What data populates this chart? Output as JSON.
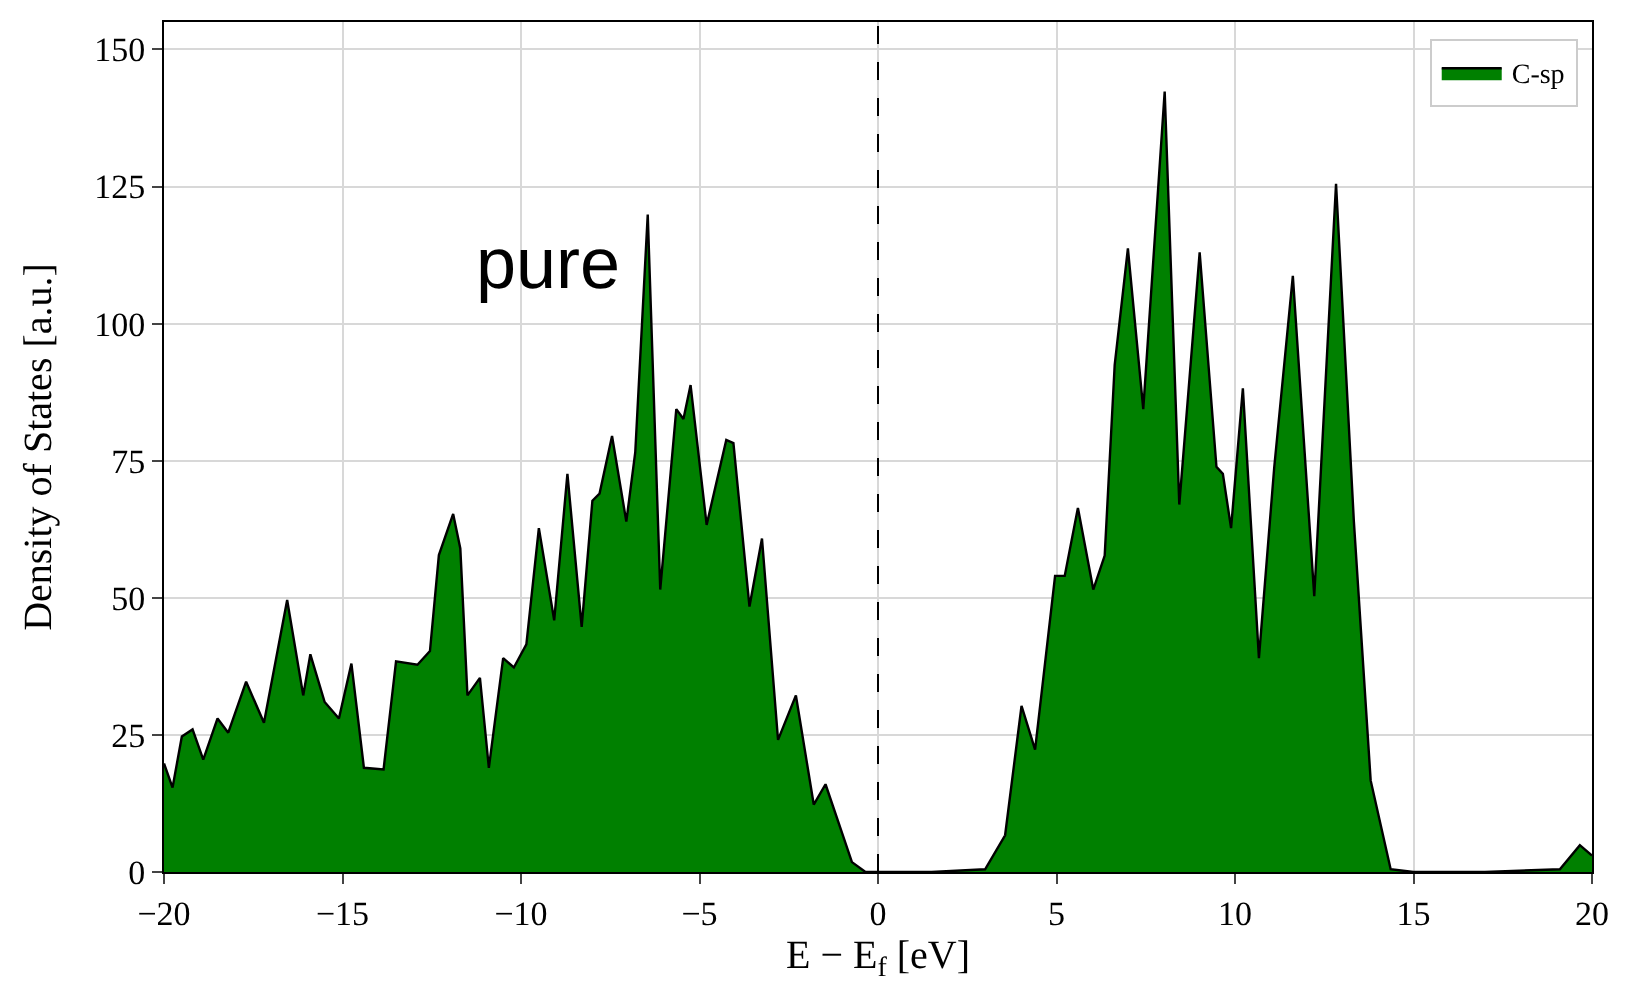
{
  "chart_data": {
    "type": "area",
    "xlabel": "E − E$_{f}$ [eV]",
    "ylabel": "Density of States [a.u.]",
    "annotations": [
      "pure"
    ],
    "xlim": [
      -20,
      20
    ],
    "ylim": [
      0,
      155
    ],
    "xticks": [
      {
        "value": -20,
        "label": "−20"
      },
      {
        "value": -15,
        "label": "−15"
      },
      {
        "value": -10,
        "label": "−10"
      },
      {
        "value": -5,
        "label": "−5"
      },
      0,
      5,
      10,
      15,
      20
    ],
    "yticks": [
      0,
      25,
      50,
      75,
      100,
      125,
      150
    ],
    "grid": true,
    "legend": "top right",
    "ref_lines": [
      {
        "axis": "x",
        "value": 0,
        "label": null,
        "color": "#000000",
        "line_style": "dashed"
      }
    ],
    "series": [
      {
        "name": "C-sp",
        "color": "#008000",
        "x": [
          -20,
          -19.76,
          -19.5,
          -19.2,
          -18.9,
          -18.5,
          -18.2,
          -17.7,
          -17.2,
          -16.55,
          -16.1,
          -15.9,
          -15.5,
          -15.1,
          -14.75,
          -14.4,
          -13.85,
          -13.5,
          -12.9,
          -12.55,
          -12.3,
          -11.9,
          -11.7,
          -11.5,
          -11.15,
          -10.9,
          -10.5,
          -10.2,
          -9.85,
          -9.5,
          -9.07,
          -8.7,
          -8.3,
          -8.0,
          -7.8,
          -7.45,
          -7.05,
          -6.8,
          -6.45,
          -6.1,
          -5.65,
          -5.45,
          -5.25,
          -4.8,
          -4.25,
          -4.05,
          -3.6,
          -3.25,
          -2.8,
          -2.3,
          -1.8,
          -1.47,
          -0.73,
          -0.35,
          0,
          1.5,
          3.0,
          3.56,
          4.02,
          4.4,
          4.96,
          5.23,
          5.6,
          6.03,
          6.35,
          6.63,
          7.0,
          7.43,
          8.03,
          8.44,
          9.01,
          9.48,
          9.66,
          9.89,
          10.22,
          10.67,
          11.1,
          11.62,
          12.22,
          12.83,
          13.33,
          13.8,
          14.36,
          15,
          17,
          19.1,
          19.66,
          20
        ],
        "values": [
          19.8,
          15.4,
          24.7,
          26,
          20.5,
          28,
          25.4,
          34.7,
          27.2,
          49.6,
          32.2,
          39.7,
          31,
          28,
          38,
          19,
          18.7,
          38.4,
          37.8,
          40.3,
          57.8,
          65.3,
          59,
          32.2,
          35.4,
          19,
          39,
          37.3,
          41.5,
          62.7,
          45.9,
          72.6,
          44.7,
          67.7,
          69,
          79.5,
          63.9,
          76.5,
          119.9,
          51.5,
          84.4,
          82.6,
          88.8,
          63.3,
          78.8,
          78.2,
          48.4,
          60.8,
          24.1,
          32.2,
          12.3,
          16,
          1.8,
          0,
          0,
          0,
          0.5,
          6.7,
          30.3,
          22.3,
          54,
          54,
          66.4,
          51.5,
          57.7,
          92.5,
          113.7,
          84.4,
          142.3,
          67,
          113,
          73.9,
          72.6,
          62.7,
          88.2,
          39,
          73.9,
          108.7,
          50.3,
          125.5,
          63.9,
          16.7,
          0.5,
          0,
          0,
          0.5,
          4.9,
          3
        ]
      }
    ]
  }
}
